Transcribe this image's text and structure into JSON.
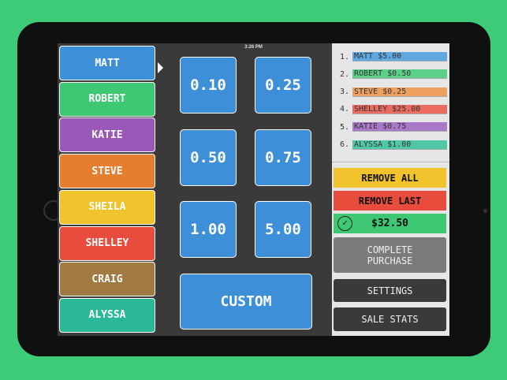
{
  "status_bar": {
    "time": "3:26 PM"
  },
  "people": [
    {
      "label": "MATT",
      "color": "#3d8fd8"
    },
    {
      "label": "ROBERT",
      "color": "#3ec873"
    },
    {
      "label": "KATIE",
      "color": "#9a58b8"
    },
    {
      "label": "STEVE",
      "color": "#e67e30"
    },
    {
      "label": "SHEILA",
      "color": "#f0c22c"
    },
    {
      "label": "SHELLEY",
      "color": "#e74c3c"
    },
    {
      "label": "CRAIG",
      "color": "#a07a40"
    },
    {
      "label": "ALYSSA",
      "color": "#2bb898"
    }
  ],
  "amounts": [
    "0.10",
    "0.25",
    "0.50",
    "0.75",
    "1.00",
    "5.00"
  ],
  "custom_label": "CUSTOM",
  "orders": [
    {
      "num": "1.",
      "text": "MATT $5.00",
      "color": "#5fa8e0"
    },
    {
      "num": "2.",
      "text": "ROBERT $0.50",
      "color": "#5cd088"
    },
    {
      "num": "3.",
      "text": "STEVE $0.25",
      "color": "#eea060"
    },
    {
      "num": "4.",
      "text": "SHELLEY $25.00",
      "color": "#ea6b60"
    },
    {
      "num": "5.",
      "text": "KATIE $0.75",
      "color": "#aa78c8"
    },
    {
      "num": "6.",
      "text": "ALYSSA $1.00",
      "color": "#50c8a8"
    }
  ],
  "actions": {
    "remove_all": "REMOVE ALL",
    "remove_last": "REMOVE LAST",
    "total": "$32.50",
    "complete_line1": "COMPLETE",
    "complete_line2": "PURCHASE",
    "settings": "SETTINGS",
    "sale_stats": "SALE STATS"
  }
}
